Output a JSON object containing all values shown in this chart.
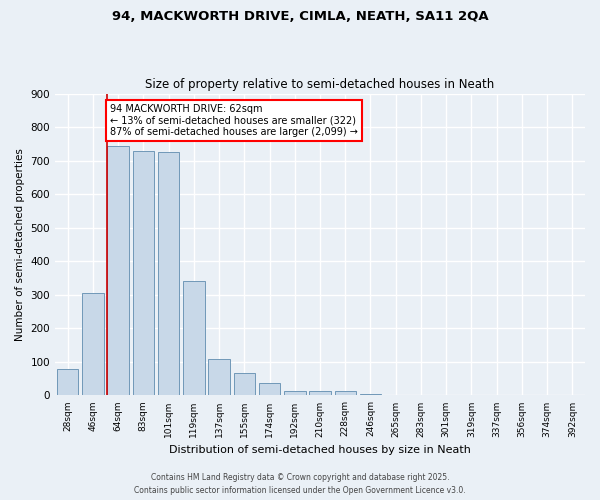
{
  "title1": "94, MACKWORTH DRIVE, CIMLA, NEATH, SA11 2QA",
  "title2": "Size of property relative to semi-detached houses in Neath",
  "xlabel": "Distribution of semi-detached houses by size in Neath",
  "ylabel": "Number of semi-detached properties",
  "categories": [
    "28sqm",
    "46sqm",
    "64sqm",
    "83sqm",
    "101sqm",
    "119sqm",
    "137sqm",
    "155sqm",
    "174sqm",
    "192sqm",
    "210sqm",
    "228sqm",
    "246sqm",
    "265sqm",
    "283sqm",
    "301sqm",
    "319sqm",
    "337sqm",
    "356sqm",
    "374sqm",
    "392sqm"
  ],
  "values": [
    80,
    305,
    745,
    730,
    725,
    340,
    108,
    68,
    38,
    13,
    12,
    12,
    5,
    0,
    0,
    0,
    0,
    0,
    0,
    0,
    0
  ],
  "bar_color": "#c8d8e8",
  "bar_edge_color": "#7098b8",
  "marker_label": "94 MACKWORTH DRIVE: 62sqm",
  "annotation_line1": "← 13% of semi-detached houses are smaller (322)",
  "annotation_line2": "87% of semi-detached houses are larger (2,099) →",
  "marker_color": "#cc0000",
  "ylim": [
    0,
    900
  ],
  "yticks": [
    0,
    100,
    200,
    300,
    400,
    500,
    600,
    700,
    800,
    900
  ],
  "bg_color": "#eaf0f6",
  "grid_color": "#ffffff",
  "fig_bg_color": "#eaf0f6",
  "footer1": "Contains HM Land Registry data © Crown copyright and database right 2025.",
  "footer2": "Contains public sector information licensed under the Open Government Licence v3.0."
}
